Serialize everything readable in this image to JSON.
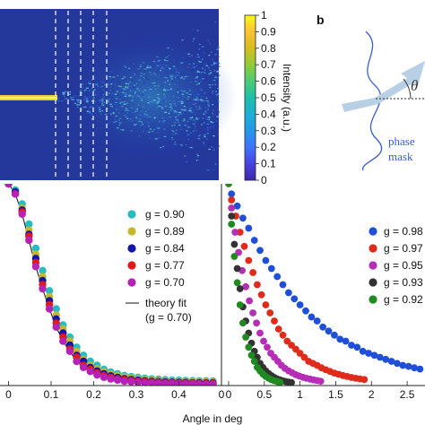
{
  "panel_b_label": "b",
  "phase_mask_label_1": "phase",
  "phase_mask_label_2": "mask",
  "theta_symbol": "θ",
  "colorbar": {
    "label": "Intensity (a.u.)",
    "ticks": [
      "1",
      "0.9",
      "0.8",
      "0.7",
      "0.6",
      "0.5",
      "0.4",
      "0.3",
      "0.2",
      "0.1",
      "0"
    ],
    "colormap": [
      "#3e26a8",
      "#4743e1",
      "#3f73fe",
      "#2598ea",
      "#1dafd6",
      "#1cc0aa",
      "#4ccb76",
      "#93cb38",
      "#d6bd1f",
      "#fcc236",
      "#f9fb15"
    ]
  },
  "chart_data": [
    {
      "type": "scatter",
      "panel": "lower-left",
      "x_ticks": [
        "0",
        "0.1",
        "0.2",
        "0.3",
        "0.4",
        "0"
      ],
      "xlim": [
        -0.02,
        0.5
      ],
      "ylim": [
        0,
        1.0
      ],
      "series": [
        {
          "name": "g = 0.90",
          "color": "#27bcc0",
          "x": [
            0.0,
            0.016,
            0.032,
            0.048,
            0.064,
            0.08,
            0.096,
            0.112,
            0.128,
            0.144,
            0.16,
            0.176,
            0.192,
            0.208,
            0.224,
            0.24,
            0.256,
            0.272,
            0.288,
            0.304,
            0.32,
            0.336,
            0.352,
            0.368,
            0.384,
            0.4,
            0.416,
            0.432,
            0.448,
            0.464,
            0.48
          ],
          "y": [
            1.0,
            0.97,
            0.9,
            0.8,
            0.68,
            0.57,
            0.47,
            0.38,
            0.3,
            0.24,
            0.19,
            0.15,
            0.12,
            0.1,
            0.08,
            0.067,
            0.058,
            0.05,
            0.044,
            0.04,
            0.036,
            0.033,
            0.031,
            0.029,
            0.027,
            0.026,
            0.025,
            0.024,
            0.023,
            0.023,
            0.022
          ]
        },
        {
          "name": "g = 0.89",
          "color": "#c5b82e",
          "x": [
            0.0,
            0.016,
            0.032,
            0.048,
            0.064,
            0.08,
            0.096,
            0.112,
            0.128,
            0.144,
            0.16,
            0.176,
            0.192,
            0.208,
            0.224,
            0.24,
            0.256,
            0.272,
            0.288,
            0.304,
            0.32,
            0.336,
            0.352,
            0.368,
            0.384,
            0.4,
            0.416,
            0.432,
            0.448,
            0.464,
            0.48
          ],
          "y": [
            1.0,
            0.96,
            0.88,
            0.77,
            0.65,
            0.54,
            0.44,
            0.35,
            0.28,
            0.22,
            0.17,
            0.13,
            0.1,
            0.083,
            0.068,
            0.057,
            0.049,
            0.042,
            0.037,
            0.033,
            0.03,
            0.027,
            0.025,
            0.023,
            0.022,
            0.021,
            0.02,
            0.019,
            0.018,
            0.018,
            0.017
          ]
        },
        {
          "name": "g = 0.84",
          "color": "#1515a8",
          "x": [
            0.0,
            0.016,
            0.032,
            0.048,
            0.064,
            0.08,
            0.096,
            0.112,
            0.128,
            0.144,
            0.16,
            0.176,
            0.192,
            0.208,
            0.224,
            0.24,
            0.256,
            0.272,
            0.288,
            0.304,
            0.32,
            0.336,
            0.352,
            0.368,
            0.384,
            0.4,
            0.416,
            0.432,
            0.448,
            0.464,
            0.48
          ],
          "y": [
            1.0,
            0.96,
            0.87,
            0.75,
            0.63,
            0.52,
            0.42,
            0.33,
            0.26,
            0.2,
            0.15,
            0.12,
            0.09,
            0.072,
            0.058,
            0.048,
            0.04,
            0.034,
            0.03,
            0.026,
            0.023,
            0.021,
            0.019,
            0.018,
            0.017,
            0.016,
            0.015,
            0.014,
            0.014,
            0.013,
            0.013
          ]
        },
        {
          "name": "g = 0.77",
          "color": "#e01919",
          "x": [
            0.0,
            0.016,
            0.032,
            0.048,
            0.064,
            0.08,
            0.096,
            0.112,
            0.128,
            0.144,
            0.16,
            0.176,
            0.192,
            0.208,
            0.224,
            0.24,
            0.256,
            0.272,
            0.288,
            0.304,
            0.32,
            0.336,
            0.352,
            0.368,
            0.384,
            0.4,
            0.416,
            0.432,
            0.448,
            0.464,
            0.48
          ],
          "y": [
            1.0,
            0.95,
            0.86,
            0.74,
            0.61,
            0.5,
            0.4,
            0.31,
            0.24,
            0.18,
            0.14,
            0.1,
            0.08,
            0.062,
            0.049,
            0.04,
            0.033,
            0.028,
            0.024,
            0.021,
            0.018,
            0.016,
            0.015,
            0.014,
            0.013,
            0.012,
            0.011,
            0.011,
            0.01,
            0.01,
            0.01
          ]
        },
        {
          "name": "g = 0.70",
          "color": "#b522b5",
          "x": [
            0.0,
            0.016,
            0.032,
            0.048,
            0.064,
            0.08,
            0.096,
            0.112,
            0.128,
            0.144,
            0.16,
            0.176,
            0.192,
            0.208,
            0.224,
            0.24,
            0.256,
            0.272,
            0.288,
            0.304,
            0.32,
            0.336,
            0.352,
            0.368,
            0.384,
            0.4,
            0.416,
            0.432,
            0.448,
            0.464,
            0.48
          ],
          "y": [
            1.0,
            0.95,
            0.85,
            0.72,
            0.59,
            0.48,
            0.38,
            0.29,
            0.22,
            0.17,
            0.12,
            0.09,
            0.07,
            0.053,
            0.041,
            0.033,
            0.027,
            0.022,
            0.019,
            0.016,
            0.014,
            0.013,
            0.011,
            0.01,
            0.01,
            0.009,
            0.008,
            0.008,
            0.008,
            0.007,
            0.007
          ]
        }
      ],
      "fit": {
        "name": "theory fit",
        "name2": "(g = 0.70)",
        "color": "#222222"
      }
    },
    {
      "type": "scatter",
      "panel": "lower-right",
      "xlabel": "Angle in deg",
      "x_ticks": [
        "0",
        "0.5",
        "1",
        "1.5",
        "2",
        "2.5"
      ],
      "xlim": [
        0,
        2.75
      ],
      "ylim": [
        0,
        1.0
      ],
      "series": [
        {
          "name": "g = 0.98",
          "color": "#1f4ed8",
          "x": [
            0.04,
            0.12,
            0.2,
            0.28,
            0.36,
            0.44,
            0.52,
            0.6,
            0.68,
            0.76,
            0.84,
            0.92,
            1.0,
            1.08,
            1.16,
            1.24,
            1.32,
            1.4,
            1.48,
            1.56,
            1.64,
            1.72,
            1.8,
            1.88,
            1.96,
            2.04,
            2.12,
            2.2,
            2.28,
            2.36,
            2.44,
            2.52,
            2.6,
            2.68
          ],
          "y": [
            0.95,
            0.89,
            0.83,
            0.78,
            0.72,
            0.67,
            0.62,
            0.58,
            0.54,
            0.5,
            0.46,
            0.43,
            0.4,
            0.37,
            0.34,
            0.32,
            0.29,
            0.27,
            0.25,
            0.23,
            0.22,
            0.2,
            0.19,
            0.17,
            0.16,
            0.15,
            0.14,
            0.13,
            0.12,
            0.11,
            0.1,
            0.095,
            0.088,
            0.082
          ]
        },
        {
          "name": "g = 0.97",
          "color": "#e02a1a",
          "x": [
            0.04,
            0.1,
            0.16,
            0.22,
            0.28,
            0.34,
            0.4,
            0.46,
            0.52,
            0.58,
            0.64,
            0.7,
            0.76,
            0.82,
            0.88,
            0.94,
            1.0,
            1.06,
            1.12,
            1.18,
            1.24,
            1.3,
            1.36,
            1.42,
            1.48,
            1.54,
            1.6,
            1.66,
            1.72,
            1.78,
            1.84,
            1.9
          ],
          "y": [
            0.92,
            0.84,
            0.76,
            0.69,
            0.62,
            0.56,
            0.5,
            0.45,
            0.4,
            0.36,
            0.32,
            0.28,
            0.25,
            0.22,
            0.2,
            0.18,
            0.16,
            0.14,
            0.12,
            0.11,
            0.1,
            0.088,
            0.078,
            0.07,
            0.062,
            0.056,
            0.05,
            0.045,
            0.04,
            0.036,
            0.033,
            0.03
          ]
        },
        {
          "name": "g = 0.95",
          "color": "#b62db6",
          "x": [
            0.04,
            0.09,
            0.14,
            0.19,
            0.24,
            0.29,
            0.34,
            0.39,
            0.44,
            0.49,
            0.54,
            0.59,
            0.64,
            0.69,
            0.74,
            0.79,
            0.84,
            0.89,
            0.94,
            0.99,
            1.04,
            1.09,
            1.14,
            1.19,
            1.24,
            1.29
          ],
          "y": [
            0.88,
            0.76,
            0.66,
            0.57,
            0.49,
            0.42,
            0.36,
            0.31,
            0.26,
            0.22,
            0.19,
            0.16,
            0.14,
            0.12,
            0.1,
            0.085,
            0.073,
            0.063,
            0.054,
            0.047,
            0.041,
            0.036,
            0.032,
            0.028,
            0.025,
            0.022
          ]
        },
        {
          "name": "g = 0.93",
          "color": "#333333",
          "x": [
            0.04,
            0.08,
            0.12,
            0.16,
            0.2,
            0.24,
            0.28,
            0.32,
            0.36,
            0.4,
            0.44,
            0.48,
            0.52,
            0.56,
            0.6,
            0.64,
            0.68,
            0.72,
            0.76,
            0.8,
            0.84,
            0.88
          ],
          "y": [
            0.84,
            0.7,
            0.58,
            0.48,
            0.39,
            0.32,
            0.26,
            0.21,
            0.17,
            0.14,
            0.11,
            0.09,
            0.073,
            0.06,
            0.049,
            0.04,
            0.033,
            0.028,
            0.023,
            0.02,
            0.017,
            0.015
          ]
        },
        {
          "name": "g = 0.92",
          "color": "#1f8a1f",
          "x": [
            0.0,
            0.04,
            0.08,
            0.12,
            0.16,
            0.2,
            0.24,
            0.28,
            0.32,
            0.36,
            0.4,
            0.44,
            0.48,
            0.52,
            0.56,
            0.6,
            0.64,
            0.68,
            0.72
          ],
          "y": [
            1.0,
            0.8,
            0.64,
            0.51,
            0.4,
            0.31,
            0.24,
            0.19,
            0.15,
            0.12,
            0.09,
            0.072,
            0.057,
            0.045,
            0.036,
            0.029,
            0.024,
            0.02,
            0.017
          ]
        }
      ]
    }
  ]
}
